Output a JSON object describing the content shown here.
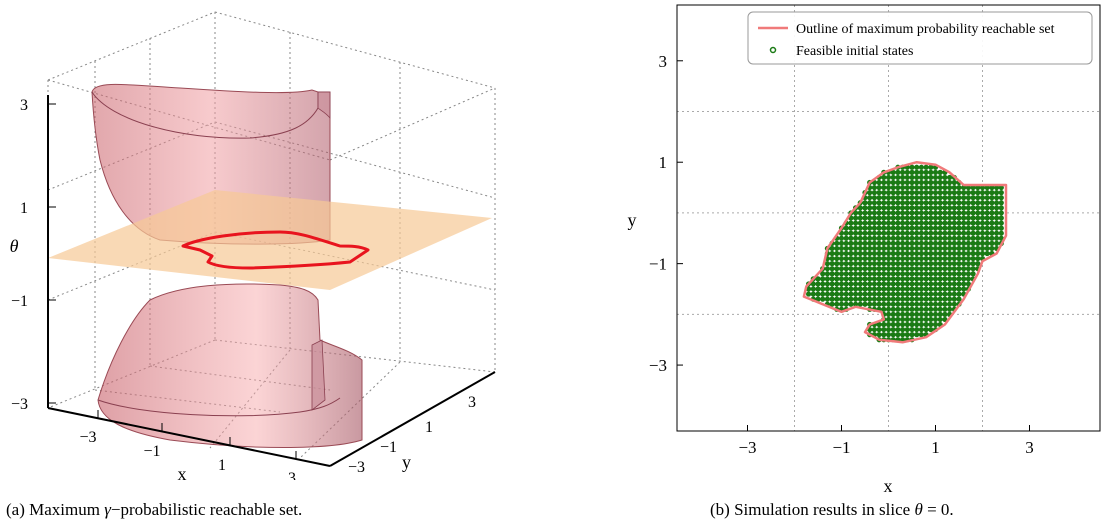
{
  "panel_a": {
    "caption_label": "(a)",
    "caption_pre": "Maximum ",
    "caption_math": "γ",
    "caption_post": "−probabilistic reachable set.",
    "x_label": "x",
    "y_label": "y",
    "z_label": "θ",
    "x_ticks": [
      "−3",
      "−1",
      "1",
      "3"
    ],
    "y_ticks": [
      "−3",
      "−1",
      "1",
      "3"
    ],
    "z_ticks": [
      "3",
      "1",
      "−1",
      "−3"
    ],
    "colors": {
      "surface": "#e07a80",
      "slice_plane": "#f6c996",
      "outline": "#e8141e"
    }
  },
  "panel_b": {
    "caption_label": "(b)",
    "caption_pre": "Simulation results in slice ",
    "caption_math": "θ",
    "caption_post": " = 0.",
    "legend": {
      "outline": "Outline of maximum probability reachable set",
      "feasible": "Feasible initial states"
    },
    "colors": {
      "outline": "#f07a7a",
      "feasible": "#1a7a14"
    }
  },
  "chart_data": {
    "type": "scatter",
    "xlabel": "x",
    "ylabel": "y",
    "xlim": [
      -4.5,
      4.5
    ],
    "ylim": [
      -4.3,
      4.1
    ],
    "xticks": [
      -3,
      -1,
      1,
      3
    ],
    "yticks": [
      3,
      1,
      -1,
      -3
    ],
    "xtick_labels": [
      "−3",
      "−1",
      "1",
      "3"
    ],
    "ytick_labels": [
      "3",
      "1",
      "−1",
      "−3"
    ],
    "grid": true,
    "legend_position": "top-right",
    "point_spacing": 0.1,
    "series": [
      {
        "name": "Outline of maximum probability reachable set",
        "kind": "line",
        "points": [
          [
            -0.6,
            0.2
          ],
          [
            -0.4,
            0.6
          ],
          [
            -0.1,
            0.8
          ],
          [
            0.2,
            0.9
          ],
          [
            0.6,
            1.0
          ],
          [
            1.0,
            0.95
          ],
          [
            1.3,
            0.8
          ],
          [
            1.6,
            0.55
          ],
          [
            2.5,
            0.55
          ],
          [
            2.5,
            -0.45
          ],
          [
            2.3,
            -0.8
          ],
          [
            2.0,
            -0.95
          ],
          [
            1.9,
            -1.2
          ],
          [
            1.6,
            -1.7
          ],
          [
            1.2,
            -2.2
          ],
          [
            0.8,
            -2.45
          ],
          [
            0.3,
            -2.55
          ],
          [
            -0.2,
            -2.5
          ],
          [
            -0.5,
            -2.35
          ],
          [
            -0.4,
            -2.2
          ],
          [
            -0.1,
            -2.1
          ],
          [
            -0.15,
            -1.95
          ],
          [
            -0.7,
            -1.85
          ],
          [
            -1.0,
            -1.95
          ],
          [
            -1.8,
            -1.65
          ],
          [
            -1.75,
            -1.45
          ],
          [
            -1.4,
            -1.1
          ],
          [
            -1.3,
            -0.7
          ],
          [
            -1.0,
            -0.3
          ],
          [
            -0.8,
            0.0
          ],
          [
            -0.6,
            0.2
          ]
        ]
      },
      {
        "name": "Feasible initial states",
        "kind": "scatter",
        "region": [
          [
            -0.6,
            0.2
          ],
          [
            -0.4,
            0.6
          ],
          [
            -0.1,
            0.8
          ],
          [
            0.2,
            0.9
          ],
          [
            0.6,
            1.0
          ],
          [
            1.0,
            0.95
          ],
          [
            1.3,
            0.8
          ],
          [
            1.6,
            0.55
          ],
          [
            2.5,
            0.55
          ],
          [
            2.5,
            -0.45
          ],
          [
            2.3,
            -0.8
          ],
          [
            2.0,
            -0.95
          ],
          [
            1.9,
            -1.2
          ],
          [
            1.6,
            -1.7
          ],
          [
            1.2,
            -2.2
          ],
          [
            0.8,
            -2.45
          ],
          [
            0.3,
            -2.55
          ],
          [
            -0.2,
            -2.5
          ],
          [
            -0.5,
            -2.35
          ],
          [
            -0.4,
            -2.2
          ],
          [
            -0.1,
            -2.1
          ],
          [
            -0.15,
            -1.95
          ],
          [
            -0.7,
            -1.85
          ],
          [
            -1.0,
            -1.95
          ],
          [
            -1.8,
            -1.65
          ],
          [
            -1.75,
            -1.45
          ],
          [
            -1.4,
            -1.1
          ],
          [
            -1.3,
            -0.7
          ],
          [
            -1.0,
            -0.3
          ],
          [
            -0.8,
            0.0
          ],
          [
            -0.6,
            0.2
          ]
        ]
      }
    ]
  }
}
